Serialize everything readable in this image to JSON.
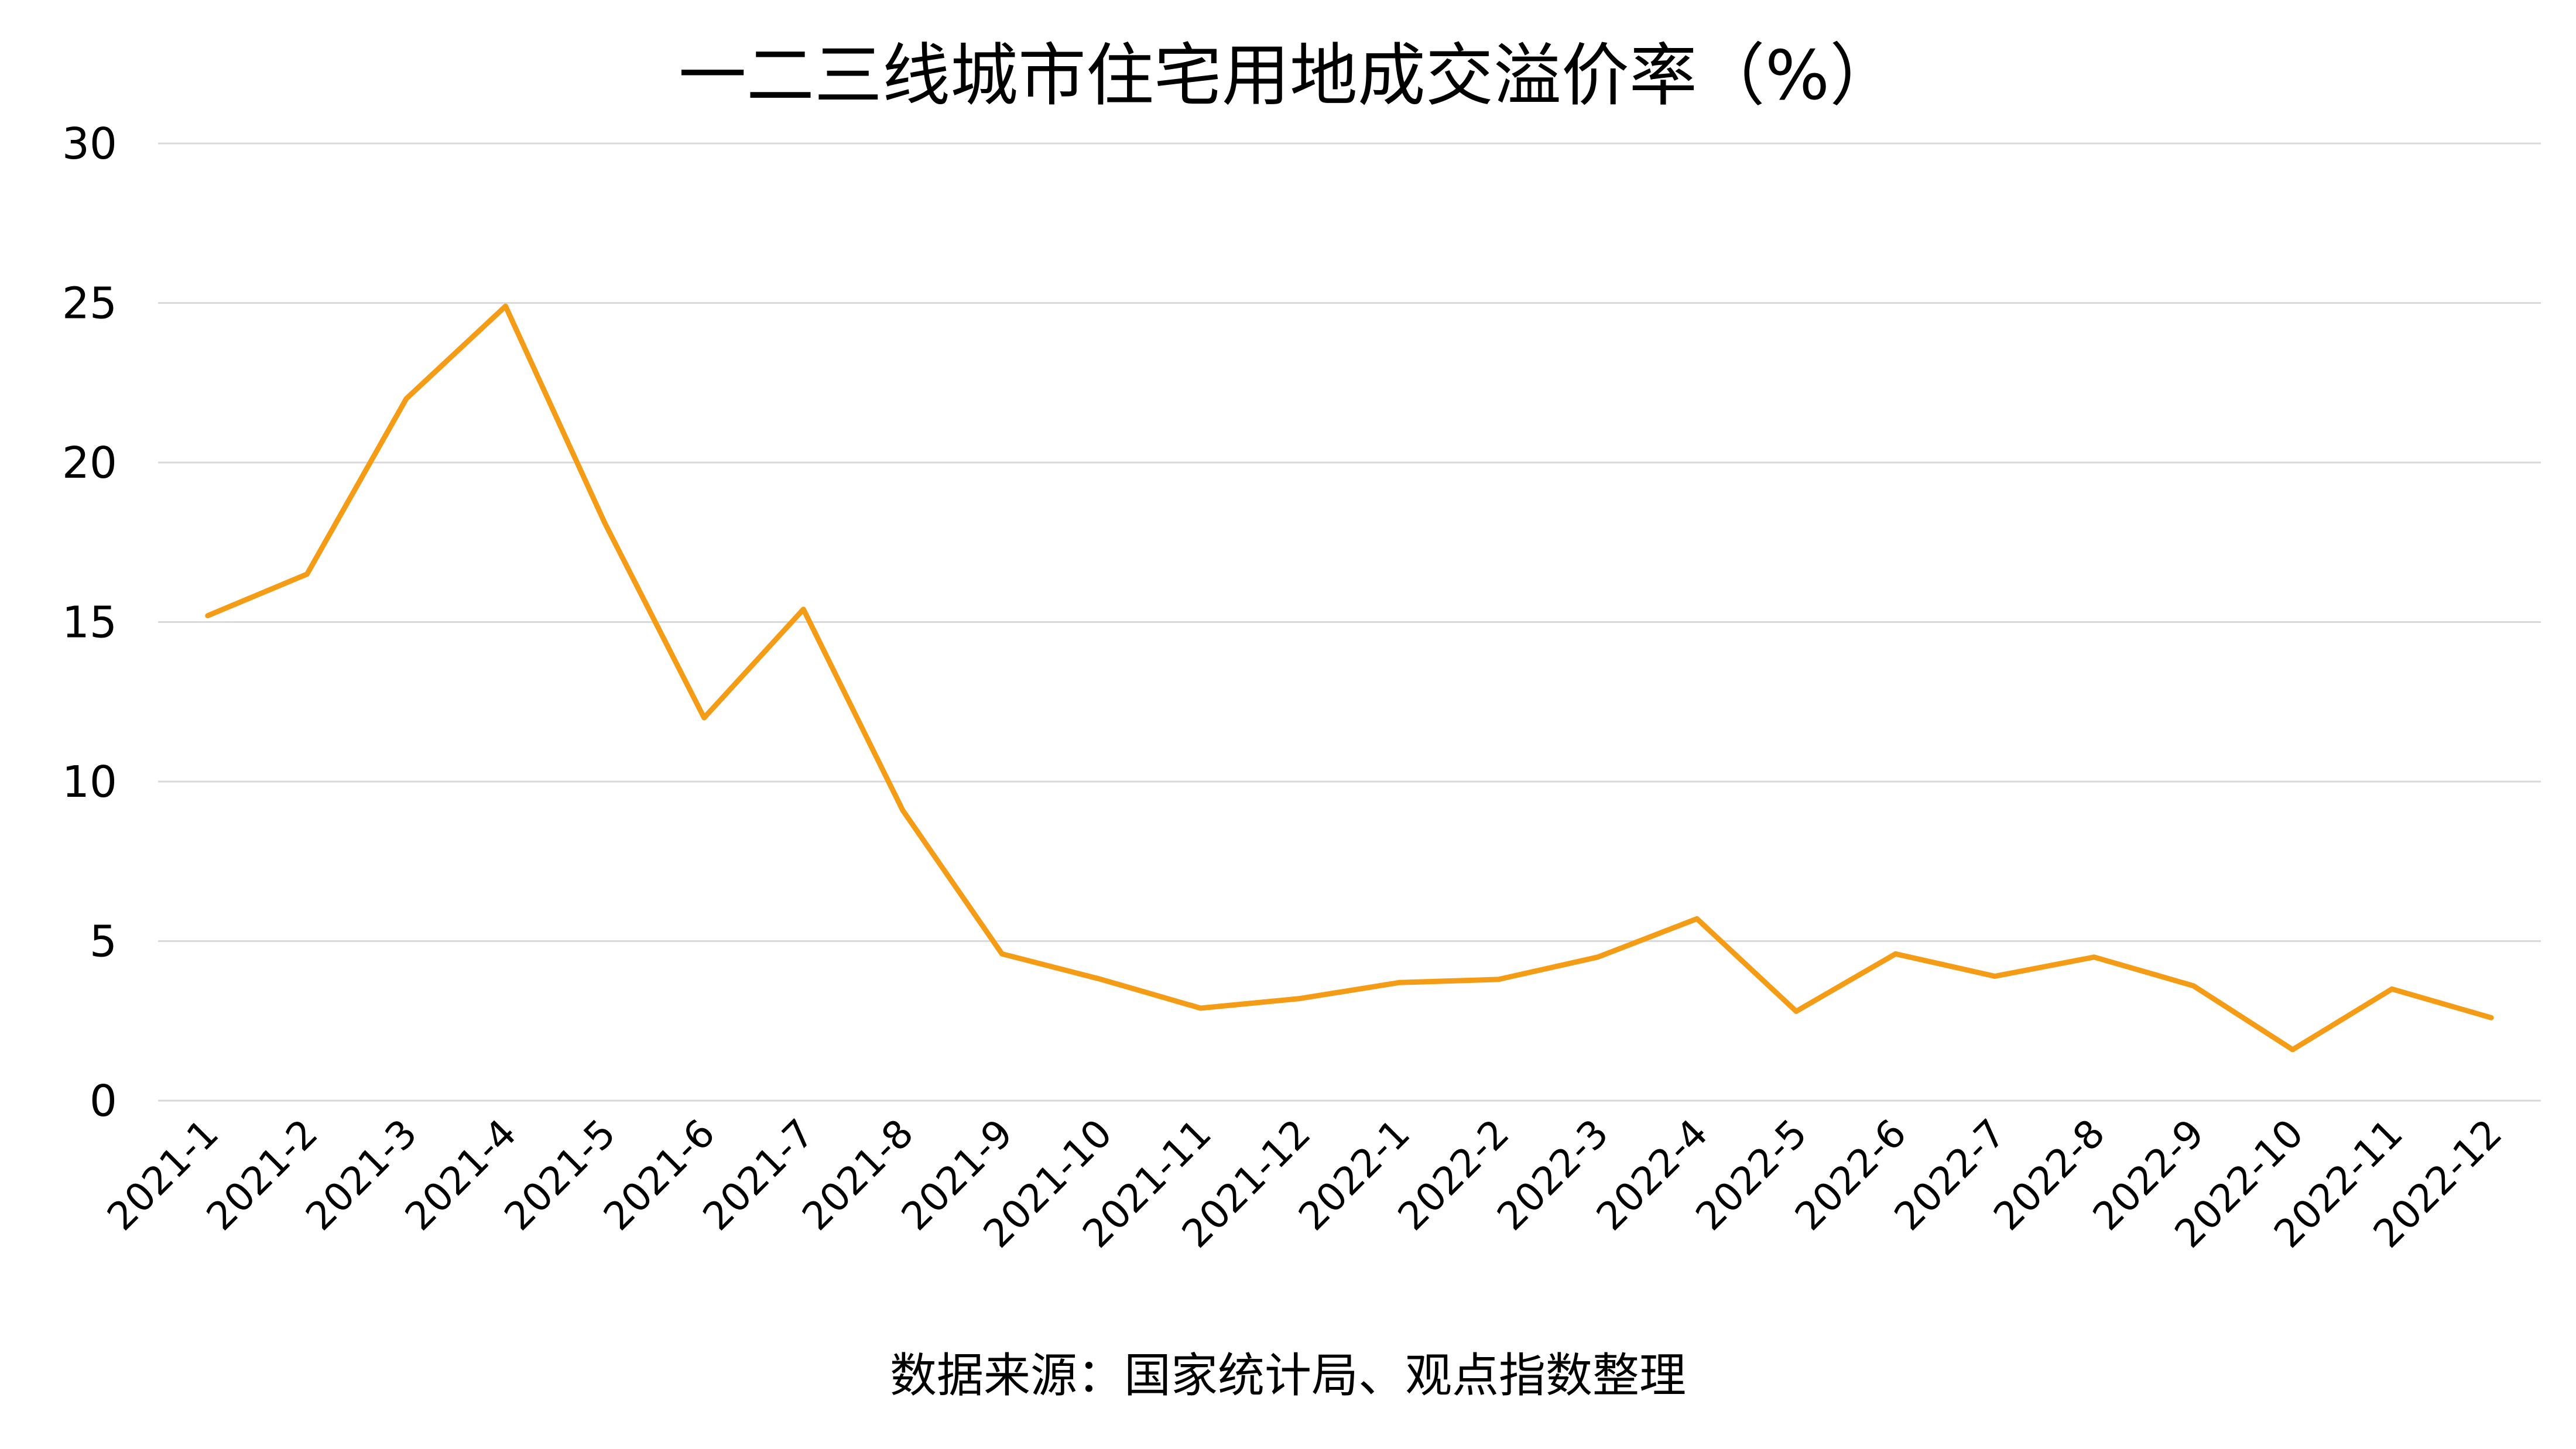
{
  "title": "一二三线城市住宅用地成交溢价率（%）",
  "footer": "数据来源：国家统计局、观点指数整理",
  "chart_data": {
    "type": "line",
    "categories": [
      "2021-1",
      "2021-2",
      "2021-3",
      "2021-4",
      "2021-5",
      "2021-6",
      "2021-7",
      "2021-8",
      "2021-9",
      "2021-10",
      "2021-11",
      "2021-12",
      "2022-1",
      "2022-2",
      "2022-3",
      "2022-4",
      "2022-5",
      "2022-6",
      "2022-7",
      "2022-8",
      "2022-9",
      "2022-10",
      "2022-11",
      "2022-12"
    ],
    "series": [
      {
        "values": [
          15.2,
          16.5,
          22.0,
          24.9,
          18.1,
          12.0,
          15.4,
          9.1,
          4.6,
          3.8,
          2.9,
          3.2,
          3.7,
          3.8,
          4.5,
          5.7,
          2.8,
          4.6,
          3.9,
          4.5,
          3.6,
          1.6,
          3.5,
          2.6
        ],
        "color": "#F59C16"
      }
    ],
    "yticks": [
      "0",
      "5",
      "10",
      "15",
      "20",
      "25",
      "30"
    ],
    "ylim": [
      0,
      30
    ],
    "grid": true,
    "gridColor": "#D9D9D9"
  }
}
